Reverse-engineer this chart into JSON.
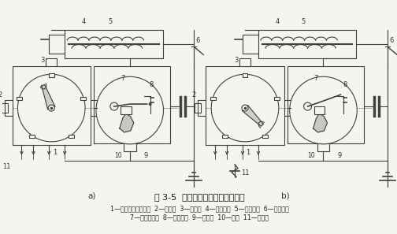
{
  "title": "图 3-5  传统点火系工作原理示意图",
  "caption_line1": "1—配电器的中心电极  2—旁电极  3—分火头  4—二次绕组  5—一次绕组  6—点火开关",
  "caption_line2": "7—活动触点臂  8—固定触点  9—电容器  10—凸轮  11—火花塞",
  "label_a": "a)",
  "label_b": "b)",
  "bg_color": "#f5f5f0",
  "line_color": "#404040",
  "text_color": "#222222"
}
